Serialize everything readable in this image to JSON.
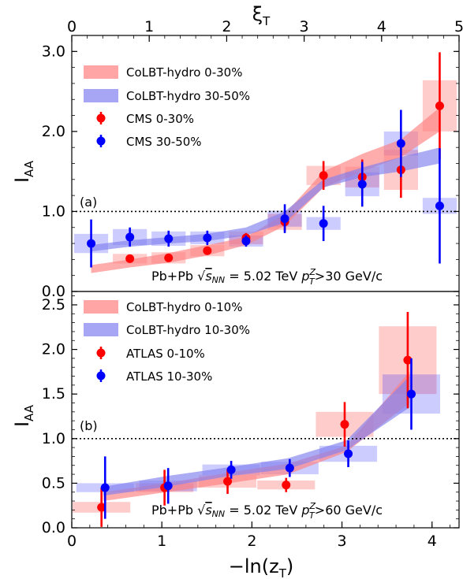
{
  "chart_data": [
    {
      "type": "scatter",
      "panel_label": "(a)",
      "x_top_label": "ξ_T",
      "x_top_ticks": [
        "0",
        "1",
        "2",
        "3",
        "4",
        "5"
      ],
      "ylabel": "I_AA",
      "ylim": [
        0,
        3.2
      ],
      "yticks": [
        "0.0",
        "1.0",
        "2.0",
        "3.0"
      ],
      "reference_line": 1.0,
      "annotation": "Pb+Pb √s_NN = 5.02 TeV  p_T^Z>30 GeV/c",
      "legend_position": "top-left",
      "series": [
        {
          "name": "CoLBT-hydro 0-30%",
          "kind": "band",
          "color": "#ff7f7f",
          "x": [
            0.25,
            0.75,
            1.25,
            1.75,
            2.25,
            2.75,
            3.25,
            3.75,
            4.25,
            4.75
          ],
          "lo": [
            0.23,
            0.3,
            0.36,
            0.45,
            0.58,
            0.82,
            1.3,
            1.5,
            1.68,
            2.0
          ],
          "hi": [
            0.33,
            0.4,
            0.48,
            0.58,
            0.68,
            0.97,
            1.5,
            1.72,
            1.9,
            2.3
          ]
        },
        {
          "name": "CoLBT-hydro 30-50%",
          "kind": "band",
          "color": "#8080f0",
          "x": [
            0.25,
            0.75,
            1.25,
            1.75,
            2.25,
            2.75,
            3.25,
            3.75,
            4.25,
            4.75
          ],
          "lo": [
            0.5,
            0.56,
            0.6,
            0.63,
            0.7,
            0.86,
            1.3,
            1.43,
            1.5,
            1.6
          ],
          "hi": [
            0.58,
            0.64,
            0.68,
            0.72,
            0.8,
            1.0,
            1.4,
            1.55,
            1.68,
            1.8
          ]
        },
        {
          "name": "CMS 0-30%",
          "kind": "points",
          "color": "#ff0000",
          "x": [
            0.25,
            0.75,
            1.25,
            1.75,
            2.25,
            2.75,
            3.25,
            3.75,
            4.25,
            4.75
          ],
          "y": [
            null,
            0.41,
            0.42,
            0.51,
            0.67,
            0.87,
            1.45,
            1.43,
            1.52,
            2.32
          ],
          "err": [
            null,
            0.03,
            0.04,
            0.05,
            0.06,
            0.12,
            0.18,
            0.22,
            0.35,
            0.67
          ],
          "sys": [
            null,
            0.06,
            0.07,
            0.07,
            0.08,
            0.1,
            0.12,
            0.13,
            0.25,
            0.32
          ]
        },
        {
          "name": "CMS 30-50%",
          "kind": "points",
          "color": "#0000ff",
          "x": [
            0.25,
            0.75,
            1.25,
            1.75,
            2.25,
            2.75,
            3.25,
            3.75,
            4.25,
            4.75
          ],
          "y": [
            0.6,
            0.68,
            0.66,
            0.67,
            0.63,
            0.91,
            0.85,
            1.34,
            1.85,
            1.07
          ],
          "err": [
            0.3,
            0.12,
            0.1,
            0.09,
            0.07,
            0.18,
            0.22,
            0.28,
            0.42,
            0.72
          ],
          "sys": [
            0.12,
            0.1,
            0.09,
            0.08,
            0.07,
            0.1,
            0.08,
            0.15,
            0.15,
            0.1
          ]
        }
      ]
    },
    {
      "type": "scatter",
      "panel_label": "(b)",
      "xlabel": "−ln(z_T)",
      "xlim": [
        0,
        4.3
      ],
      "xticks": [
        "0",
        "1",
        "2",
        "3",
        "4"
      ],
      "ylabel": "I_AA",
      "ylim": [
        0,
        2.65
      ],
      "yticks": [
        "0.0",
        "0.5",
        "1.0",
        "1.5",
        "2.0",
        "2.5"
      ],
      "reference_line": 1.0,
      "annotation": "Pb+Pb √s_NN = 5.02 TeV  p_T^Z>60 GeV/c",
      "legend_position": "top-left",
      "series": [
        {
          "name": "CoLBT-hydro 0-10%",
          "kind": "band",
          "color": "#ff7f7f",
          "x": [
            0.35,
            1.05,
            1.75,
            2.4,
            3.05,
            3.75
          ],
          "lo": [
            0.3,
            0.4,
            0.5,
            0.6,
            0.85,
            1.4
          ],
          "hi": [
            0.4,
            0.5,
            0.62,
            0.72,
            0.92,
            1.75
          ]
        },
        {
          "name": "CoLBT-hydro 10-30%",
          "kind": "band",
          "color": "#8080f0",
          "x": [
            0.35,
            1.05,
            1.75,
            2.4,
            3.05,
            3.75
          ],
          "lo": [
            0.36,
            0.46,
            0.58,
            0.66,
            0.87,
            1.35
          ],
          "hi": [
            0.46,
            0.58,
            0.68,
            0.78,
            0.98,
            1.7
          ]
        },
        {
          "name": "ATLAS 0-10%",
          "kind": "points",
          "color": "#ff0000",
          "x": [
            0.33,
            1.03,
            1.73,
            2.38,
            3.03,
            3.73
          ],
          "y": [
            0.23,
            0.45,
            0.52,
            0.48,
            1.16,
            1.88
          ],
          "err": [
            0.22,
            0.2,
            0.14,
            0.08,
            0.25,
            0.54
          ],
          "sys": [
            0.06,
            0.05,
            0.07,
            0.05,
            0.14,
            0.38
          ]
        },
        {
          "name": "ATLAS 10-30%",
          "kind": "points",
          "color": "#0000ff",
          "x": [
            0.37,
            1.07,
            1.77,
            2.42,
            3.07,
            3.77
          ],
          "y": [
            0.45,
            0.47,
            0.65,
            0.67,
            0.83,
            1.5
          ],
          "err": [
            0.35,
            0.2,
            0.1,
            0.1,
            0.15,
            0.4
          ],
          "sys": [
            0.05,
            0.06,
            0.06,
            0.07,
            0.09,
            0.22
          ]
        }
      ]
    }
  ]
}
